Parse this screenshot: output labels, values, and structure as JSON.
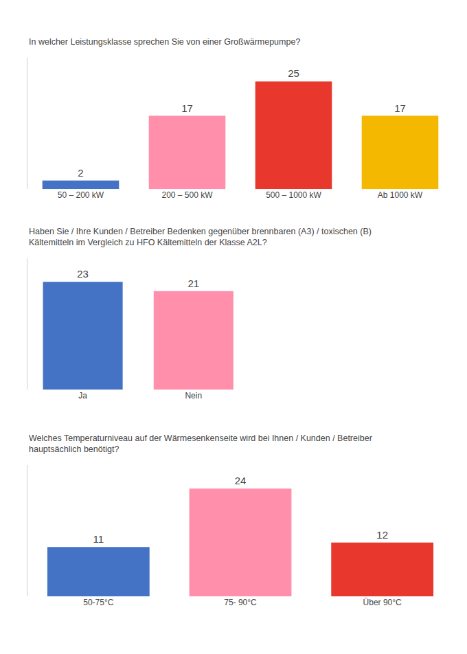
{
  "chart_data": [
    {
      "type": "bar",
      "title": "In welcher Leistungsklasse sprechen Sie von einer Großwärmepumpe?",
      "categories": [
        "50 – 200 kW",
        "200 – 500 kW",
        "500 – 1000 kW",
        "Ab 1000 kW"
      ],
      "values": [
        2,
        17,
        25,
        17
      ],
      "colors": [
        "#4472C4",
        "#FF8FAB",
        "#E8372C",
        "#F5B800"
      ],
      "ylim": [
        0,
        30.5
      ],
      "grid": false,
      "data_labels": true,
      "tick_labels": "x"
    },
    {
      "type": "bar",
      "title": "Haben Sie / Ihre Kunden / Betreiber Bedenken gegenüber brennbaren (A3) / toxischen (B)\nKältemitteln im Vergleich zu HFO Kältemitteln der Klasse A2L?",
      "categories": [
        "Ja",
        "Nein"
      ],
      "values": [
        23,
        21
      ],
      "colors": [
        "#4472C4",
        "#FF8FAB"
      ],
      "ylim": [
        0,
        28.06
      ],
      "grid": false,
      "data_labels": true,
      "tick_labels": "x"
    },
    {
      "type": "bar",
      "title": "Welches Temperaturniveau auf der Wärmesenkenseite wird bei Ihnen / Kunden / Betreiber\nhauptsächlich benötigt?",
      "categories": [
        "50-75°C",
        "75- 90°C",
        "Über 90°C"
      ],
      "values": [
        11,
        24,
        12
      ],
      "colors": [
        "#4472C4",
        "#FF8FAB",
        "#E8372C"
      ],
      "ylim": [
        0,
        29.28
      ],
      "grid": false,
      "data_labels": true,
      "tick_labels": "x"
    }
  ]
}
